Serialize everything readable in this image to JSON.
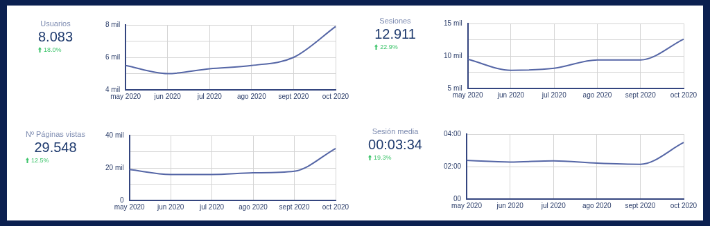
{
  "chart_data": [
    {
      "type": "other",
      "title": "Usuarios",
      "annotations": [
        "8.083",
        "18.0%"
      ]
    },
    {
      "type": "line",
      "categories": [
        "may 2020",
        "jun 2020",
        "jul 2020",
        "ago 2020",
        "sept 2020",
        "oct 2020"
      ],
      "series": [
        {
          "color": "#5566a6",
          "values": [
            5.5,
            5.0,
            5.3,
            5.5,
            6.0,
            7.9
          ]
        }
      ],
      "ylim": [
        4,
        8
      ],
      "yticks": [
        {
          "value": 4,
          "label": "4 mil"
        },
        {
          "value": 5,
          "label": null
        },
        {
          "value": 6,
          "label": "6 mil"
        },
        {
          "value": 7,
          "label": null
        },
        {
          "value": 8,
          "label": "8 mil"
        }
      ],
      "grid": true
    },
    {
      "type": "other",
      "title": "Sesiones",
      "annotations": [
        "12.911",
        "22.9%"
      ]
    },
    {
      "type": "line",
      "categories": [
        "may 2020",
        "jun 2020",
        "jul 2020",
        "ago 2020",
        "sept 2020",
        "oct 2020"
      ],
      "series": [
        {
          "color": "#5566a6",
          "values": [
            9.5,
            7.8,
            8.1,
            9.4,
            9.4,
            12.6
          ]
        }
      ],
      "ylim": [
        5,
        15
      ],
      "yticks": [
        {
          "value": 5,
          "label": "5 mil"
        },
        {
          "value": 7.5,
          "label": null
        },
        {
          "value": 10,
          "label": "10 mil"
        },
        {
          "value": 12.5,
          "label": null
        },
        {
          "value": 15,
          "label": "15 mil"
        }
      ],
      "grid": true
    },
    {
      "type": "other",
      "title": "Nº Páginas vistas",
      "annotations": [
        "29.548",
        "12.5%"
      ]
    },
    {
      "type": "line",
      "categories": [
        "may 2020",
        "jun 2020",
        "jul 2020",
        "ago 2020",
        "sept 2020",
        "oct 2020"
      ],
      "series": [
        {
          "color": "#5566a6",
          "values": [
            19,
            16,
            16,
            17,
            18,
            32
          ]
        }
      ],
      "ylim": [
        0,
        40
      ],
      "yticks": [
        0,
        {
          "value": 10,
          "label": null
        },
        {
          "value": 20,
          "label": "20 mil"
        },
        {
          "value": 30,
          "label": null
        },
        {
          "value": 40,
          "label": "40 mil"
        }
      ],
      "grid": true
    },
    {
      "type": "other",
      "title": "Sesión media",
      "annotations": [
        "00:03:34",
        "19.3%"
      ]
    },
    {
      "type": "line",
      "categories": [
        "may 2020",
        "jun 2020",
        "jul 2020",
        "ago 2020",
        "sept 2020",
        "oct 2020"
      ],
      "series": [
        {
          "color": "#5566a6",
          "values": [
            2.38,
            2.28,
            2.35,
            2.21,
            2.14,
            3.48
          ]
        }
      ],
      "ylim": [
        0,
        4
      ],
      "yticks": [
        {
          "value": 0,
          "label": "00"
        },
        {
          "value": 2,
          "label": "02:00"
        },
        {
          "value": 4,
          "label": "04:00"
        }
      ],
      "grid": true
    }
  ]
}
